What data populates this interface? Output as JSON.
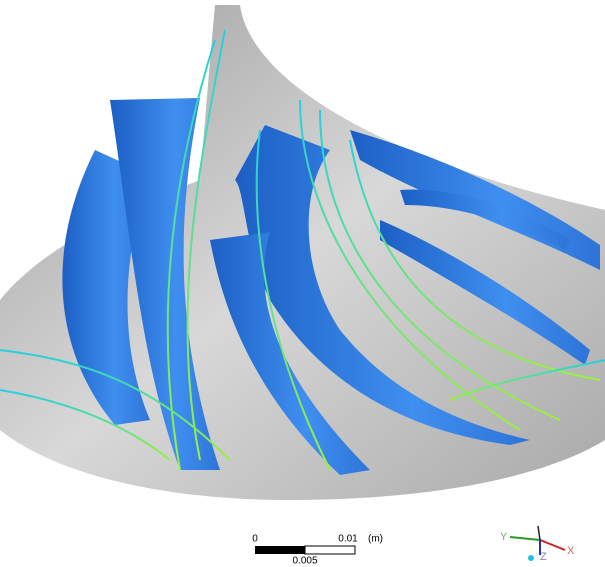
{
  "scale_bar": {
    "start": "0",
    "end": "0.01",
    "unit": "(m)",
    "middle": "0.005"
  },
  "axes": {
    "y": "Y",
    "z": "Z",
    "x": "X"
  }
}
